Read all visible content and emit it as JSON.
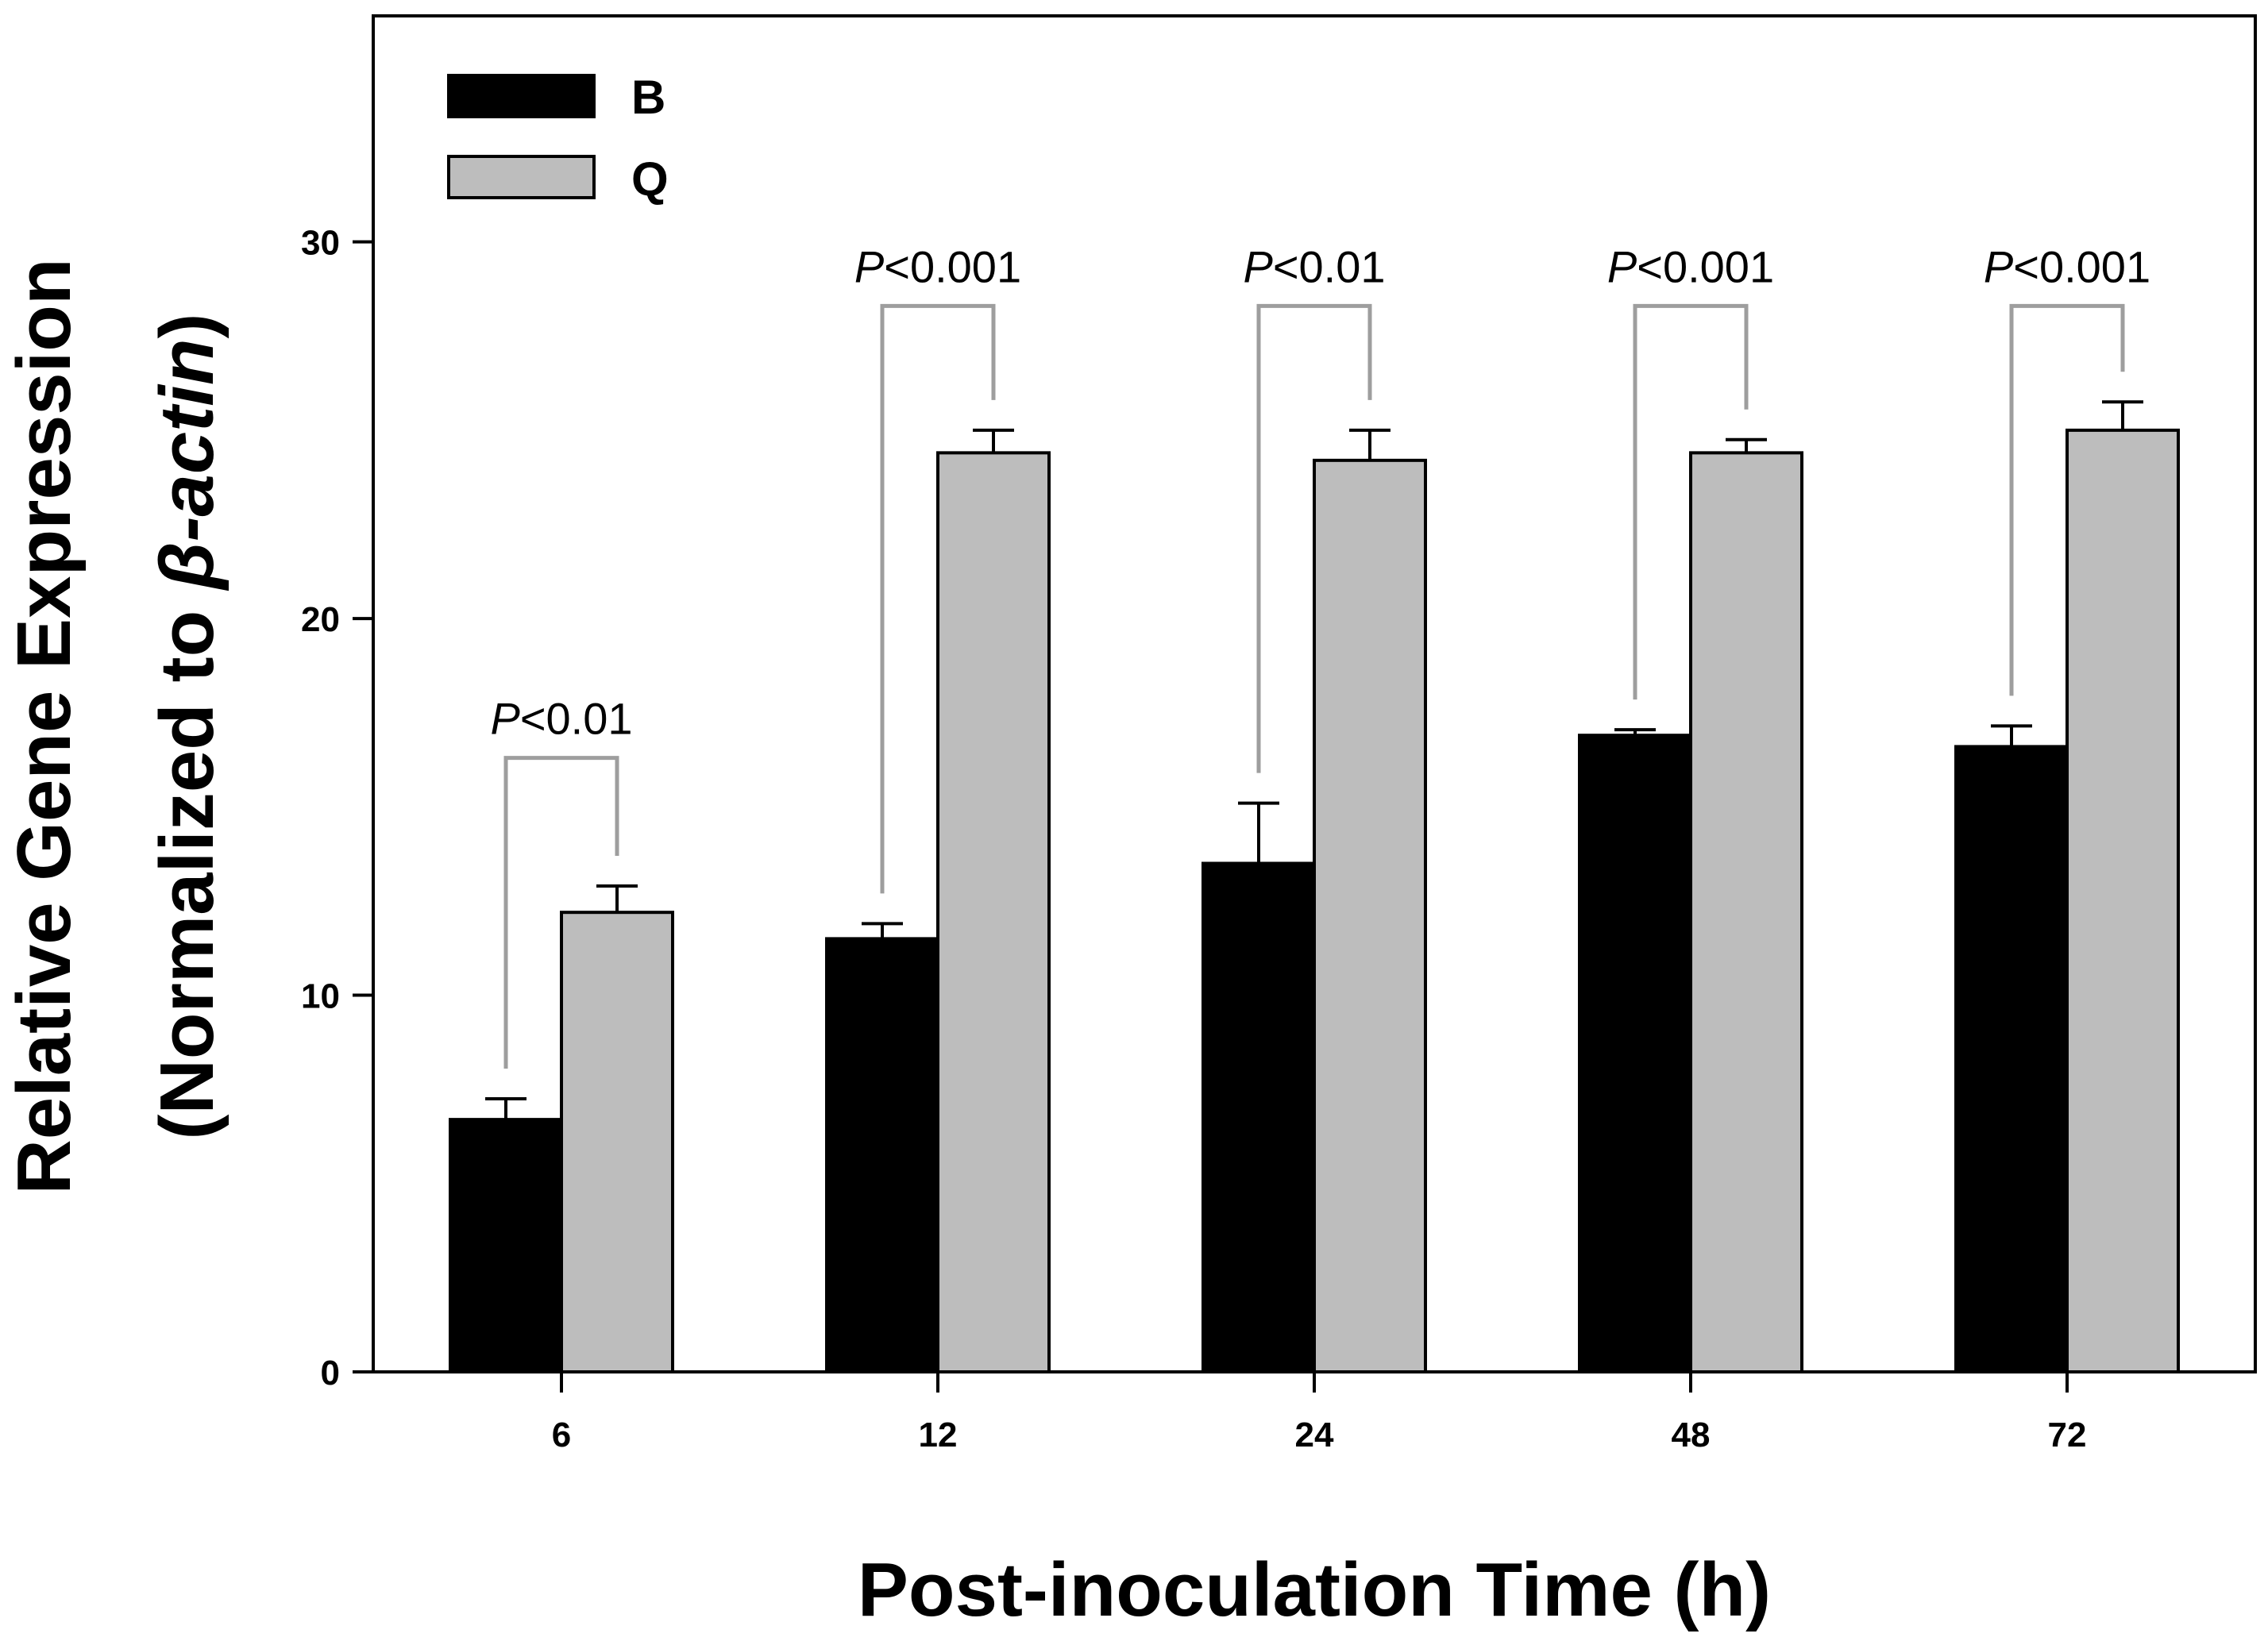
{
  "chart_data": {
    "type": "bar",
    "categories": [
      "6",
      "12",
      "24",
      "48",
      "72"
    ],
    "series": [
      {
        "name": "B",
        "color": "#000000",
        "values": [
          6.7,
          11.5,
          13.5,
          16.9,
          16.6
        ],
        "errors": [
          0.55,
          0.4,
          1.6,
          0.15,
          0.55
        ]
      },
      {
        "name": "Q",
        "color": "#bdbdbd",
        "values": [
          12.2,
          24.4,
          24.2,
          24.4,
          25.0
        ],
        "errors": [
          0.7,
          0.6,
          0.8,
          0.35,
          0.75
        ]
      }
    ],
    "ylim": [
      0,
      36
    ],
    "yticks": [
      "0",
      "10",
      "20",
      "30"
    ],
    "xlabel": "Post-inoculation Time (h)",
    "ylabel_line1": "Relative Gene Expression",
    "ylabel_line2_prefix": "(Normalized to ",
    "ylabel_line2_italic": "β-actin",
    "ylabel_line2_suffix": ")",
    "legend": {
      "position": "top-left",
      "entries": [
        "B",
        "Q"
      ]
    },
    "annotations": [
      {
        "p_symbol": "P",
        "p_value": "<0.01",
        "bracket_level": 16.3
      },
      {
        "p_symbol": "P",
        "p_value": "<0.001",
        "bracket_level": 28.3
      },
      {
        "p_symbol": "P",
        "p_value": "<0.01",
        "bracket_level": 28.3
      },
      {
        "p_symbol": "P",
        "p_value": "<0.001",
        "bracket_level": 28.3
      },
      {
        "p_symbol": "P",
        "p_value": "<0.001",
        "bracket_level": 28.3
      }
    ]
  }
}
